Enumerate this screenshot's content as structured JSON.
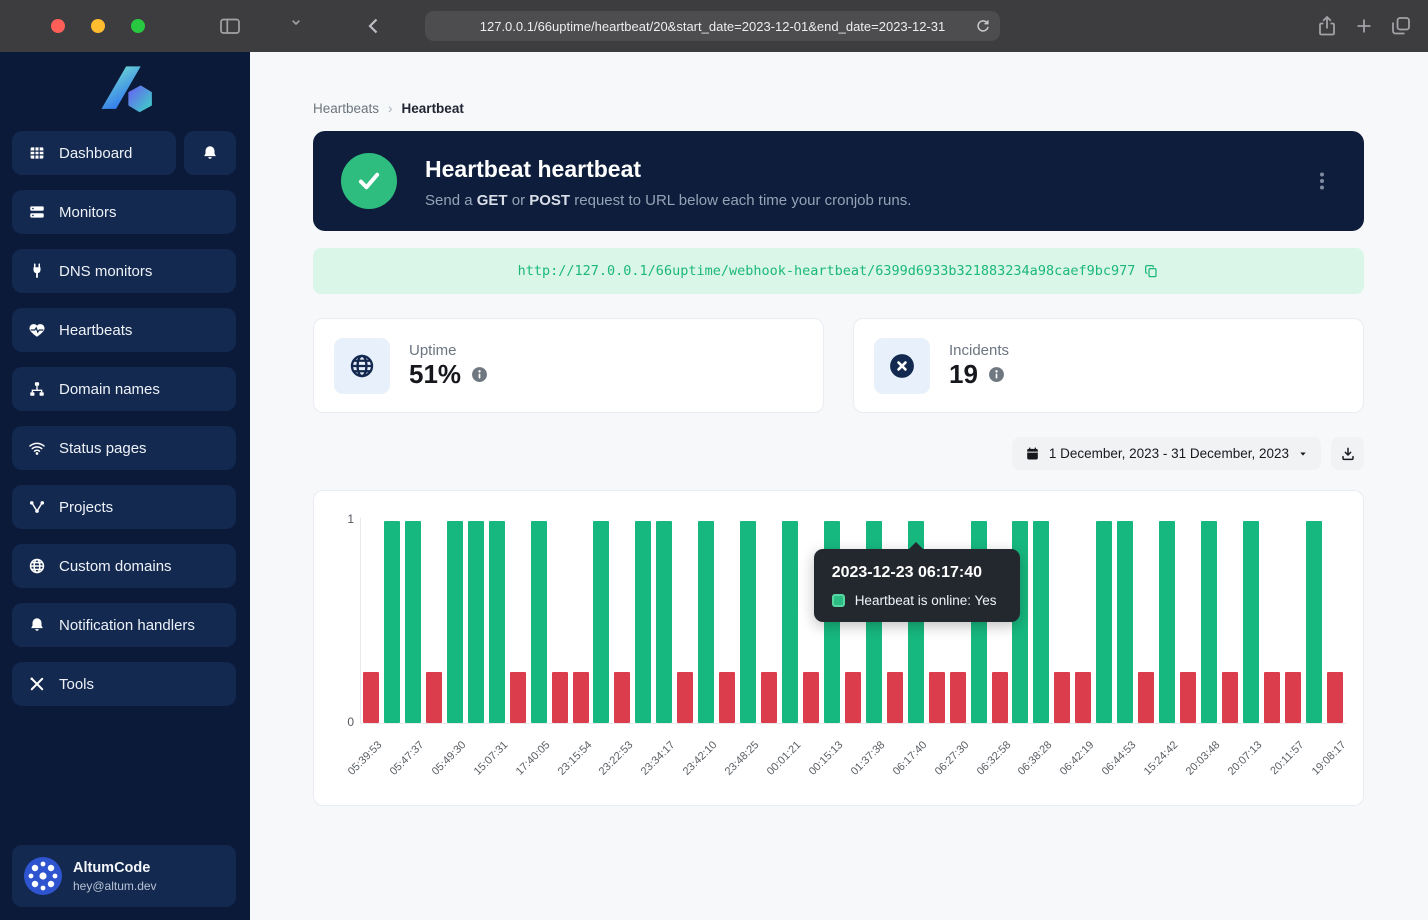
{
  "browser": {
    "url": "127.0.0.1/66uptime/heartbeat/20&start_date=2023-12-01&end_date=2023-12-31"
  },
  "sidebar": {
    "items": [
      {
        "icon": "grid-icon",
        "label": "Dashboard"
      },
      {
        "icon": "server-icon",
        "label": "Monitors"
      },
      {
        "icon": "plug-icon",
        "label": "DNS monitors"
      },
      {
        "icon": "heart-pulse-icon",
        "label": "Heartbeats"
      },
      {
        "icon": "sitemap-icon",
        "label": "Domain names"
      },
      {
        "icon": "wifi-icon",
        "label": "Status pages"
      },
      {
        "icon": "share-nodes-icon",
        "label": "Projects"
      },
      {
        "icon": "globe-icon",
        "label": "Custom domains"
      },
      {
        "icon": "bell-icon",
        "label": "Notification handlers"
      },
      {
        "icon": "tools-icon",
        "label": "Tools"
      }
    ],
    "user": {
      "name": "AltumCode",
      "email": "hey@altum.dev"
    }
  },
  "breadcrumb": {
    "parent": "Heartbeats",
    "current": "Heartbeat"
  },
  "hero": {
    "title": "Heartbeat heartbeat",
    "desc_parts": [
      "Send a ",
      "GET",
      " or ",
      "POST",
      " request to URL below each time your cronjob runs."
    ]
  },
  "webhook": {
    "url": "http://127.0.0.1/66uptime/webhook-heartbeat/6399d6933b321883234a98caef9bc977"
  },
  "stats": [
    {
      "icon": "globe-icon",
      "label": "Uptime",
      "value": "51%"
    },
    {
      "icon": "circle-x-icon",
      "label": "Incidents",
      "value": "19"
    }
  ],
  "daterange": {
    "label": "1 December, 2023 - 31 December, 2023"
  },
  "chart_data": {
    "type": "bar",
    "series": [
      {
        "name": "Heartbeat is online",
        "values": [
          0,
          1,
          1,
          0,
          1,
          1,
          1,
          0,
          1,
          0,
          0,
          1,
          0,
          1,
          1,
          0,
          1,
          0,
          1,
          0,
          1,
          0,
          1,
          0,
          1,
          0,
          1,
          0,
          0,
          1,
          0,
          1,
          1,
          0,
          0,
          1,
          1,
          0,
          1,
          0,
          1,
          0,
          1,
          0,
          0,
          1,
          0
        ]
      }
    ],
    "tick_labels": [
      "05:39:53",
      "05:47:37",
      "05:49:30",
      "15:07:31",
      "17:40:05",
      "23:15:54",
      "23:22:53",
      "23:34:17",
      "23:42:10",
      "23:48:25",
      "00:01:21",
      "00:15:13",
      "01:37:38",
      "06:17:40",
      "06:27:30",
      "06:32:58",
      "06:38:28",
      "06:42:19",
      "06:44:53",
      "15:24:42",
      "20:03:48",
      "20:07:13",
      "20:11:57",
      "19:08:17"
    ],
    "label_every_n_bars": 2,
    "ylim": [
      0,
      1
    ],
    "ytick_top": "1",
    "ytick_bottom": "0",
    "online_bar_height": 1,
    "offline_bar_height": 0.25,
    "colors": {
      "online": "#17b87f",
      "offline": "#dc3d4d"
    },
    "tooltip": {
      "title": "2023-12-23 06:17:40",
      "legend": "Heartbeat is online: Yes",
      "bar_index": 26
    }
  }
}
